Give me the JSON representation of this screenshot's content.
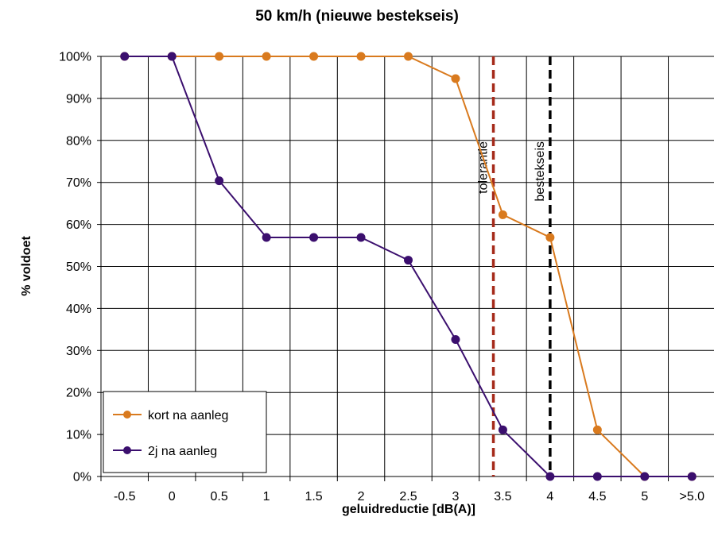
{
  "chart_data": {
    "type": "line",
    "title": "50 km/h (nieuwe bestekseis)",
    "xlabel": "geluidreductie [dB(A)]",
    "ylabel": "% voldoet",
    "categories": [
      "-0.5",
      "0",
      "0.5",
      "1",
      "1.5",
      "2",
      "2.5",
      "3",
      "3.5",
      "4",
      "4.5",
      "5",
      ">5.0"
    ],
    "y_ticks": [
      "0%",
      "10%",
      "20%",
      "30%",
      "40%",
      "50%",
      "60%",
      "70%",
      "80%",
      "90%",
      "100%"
    ],
    "ylim": [
      0,
      100
    ],
    "grid": true,
    "legend_position": "bottom-left",
    "series": [
      {
        "name": "kort na aanleg",
        "color": "#d97a1e",
        "values": [
          100,
          100,
          100,
          100,
          100,
          100,
          100,
          94.7,
          62.3,
          56.9,
          11.1,
          0,
          0
        ]
      },
      {
        "name": "2j na aanleg",
        "color": "#3b0f6e",
        "values": [
          100,
          100,
          70.4,
          56.9,
          56.9,
          56.9,
          51.5,
          32.6,
          11.1,
          0,
          0,
          0,
          0
        ]
      }
    ],
    "reference_lines": [
      {
        "label": "tolerantie",
        "x": 3.4,
        "color": "#a52a1a"
      },
      {
        "label": "bestekseis",
        "x": 4.0,
        "color": "#000000"
      }
    ]
  }
}
